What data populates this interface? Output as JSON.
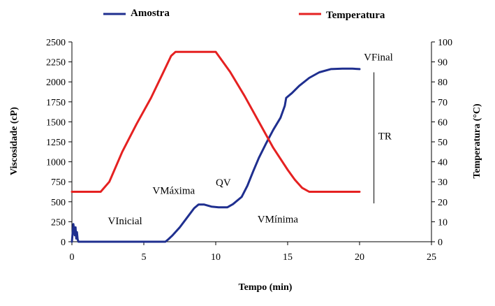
{
  "chart_data": {
    "type": "line",
    "xlabel": "Tempo (min)",
    "ylabel": "Viscosidade (cP)",
    "y2label": "Temperatura (°C)",
    "xlim": [
      0,
      25
    ],
    "ylim": [
      0,
      2500
    ],
    "y2lim": [
      0,
      100
    ],
    "x_ticks": [
      "0",
      "5",
      "10",
      "15",
      "20",
      "25"
    ],
    "y_ticks": [
      "0",
      "250",
      "500",
      "750",
      "1000",
      "1250",
      "1500",
      "1750",
      "2000",
      "2250",
      "2500"
    ],
    "y2_ticks": [
      "0",
      "10",
      "20",
      "30",
      "40",
      "50",
      "60",
      "70",
      "80",
      "90",
      "100"
    ],
    "grid": false,
    "legend_position": "top",
    "series": [
      {
        "name": "Amostra",
        "axis": "left",
        "color": "#1f2f8f",
        "x": [
          0,
          0.1,
          0.2,
          0.25,
          0.3,
          0.35,
          0.4,
          0.45,
          1,
          3,
          5,
          6.5,
          6.7,
          7.0,
          7.5,
          8.0,
          8.5,
          8.8,
          9.2,
          9.7,
          10.2,
          10.8,
          11.2,
          11.8,
          12.2,
          12.6,
          13.0,
          13.5,
          14.0,
          14.5,
          14.8,
          14.9,
          15.3,
          15.8,
          16.5,
          17.2,
          18.0,
          18.8,
          19.5,
          20.0
        ],
        "y": [
          0,
          220,
          80,
          180,
          40,
          120,
          30,
          0,
          0,
          0,
          0,
          0,
          30,
          80,
          180,
          300,
          420,
          465,
          465,
          440,
          430,
          430,
          470,
          560,
          700,
          880,
          1050,
          1230,
          1400,
          1550,
          1700,
          1800,
          1860,
          1950,
          2050,
          2120,
          2160,
          2165,
          2165,
          2160
        ]
      },
      {
        "name": "Temperatura",
        "axis": "right",
        "color": "#e52121",
        "x": [
          0,
          2.0,
          2.6,
          3.5,
          4.5,
          5.5,
          6.3,
          6.9,
          7.2,
          8.0,
          9.0,
          10.0,
          11.0,
          12.0,
          13.0,
          14.0,
          15.0,
          15.5,
          16.0,
          16.5,
          17.5,
          19.0,
          20.0
        ],
        "y": [
          25,
          25,
          30,
          45,
          59,
          72,
          84,
          93,
          95,
          95,
          95,
          95,
          85,
          73,
          60,
          47,
          36,
          31,
          27,
          25,
          25,
          25,
          25
        ]
      }
    ],
    "annotations": [
      {
        "text": "VInicial",
        "x": 2.5,
        "y": 220
      },
      {
        "text": "VMáxima",
        "x": 5.6,
        "y": 600
      },
      {
        "text": "QV",
        "x": 10.0,
        "y": 700
      },
      {
        "text": "VMínima",
        "x": 12.9,
        "y": 240
      },
      {
        "text": "VFinal",
        "x": 20.3,
        "y": 2270
      },
      {
        "text": "TR",
        "x": 21.3,
        "y": 1280
      }
    ],
    "tr_line": {
      "x": 21.0,
      "y_from": 480,
      "y_to": 2120
    }
  }
}
